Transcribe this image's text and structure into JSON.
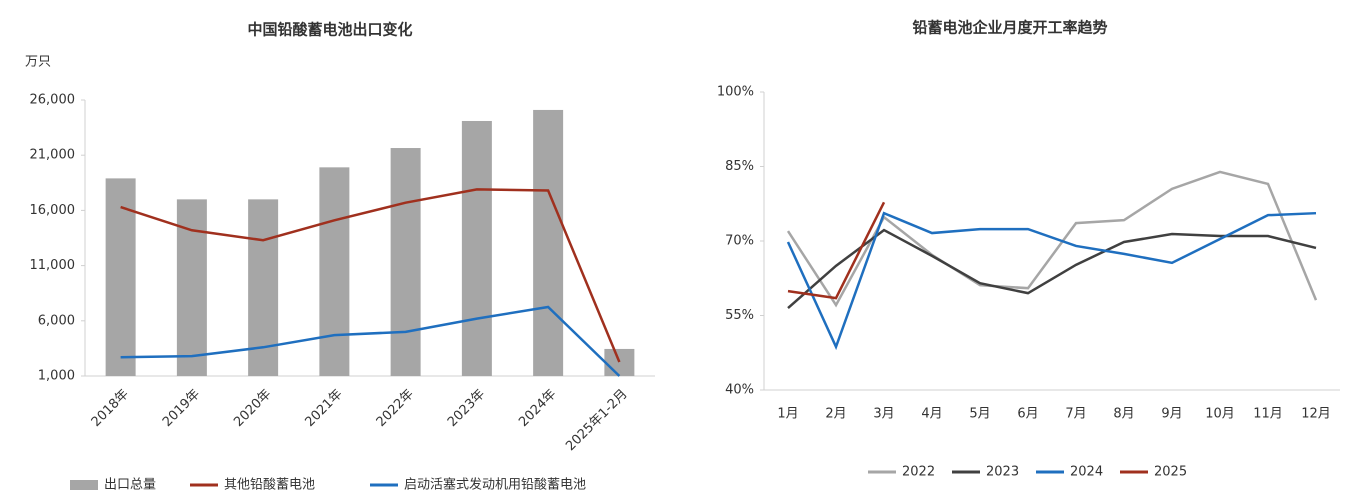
{
  "chart_data": [
    {
      "type": "bar",
      "title": "中国铅酸蓄电池出口变化",
      "y_label": "万只",
      "categories": [
        "2018年",
        "2019年",
        "2020年",
        "2021年",
        "2022年",
        "2023年",
        "2024年",
        "2025年1-2月"
      ],
      "series": [
        {
          "name": "出口总量",
          "type": "bar",
          "color": "#a6a6a6",
          "values": [
            18900,
            17000,
            17000,
            19900,
            21650,
            24100,
            25100,
            3450
          ]
        },
        {
          "name": "其他铅酸蓄电池",
          "type": "line",
          "color": "#a0301e",
          "values": [
            16300,
            14200,
            13300,
            15100,
            16700,
            17900,
            17800,
            2270
          ]
        },
        {
          "name": "启动活塞式发动机用铅酸蓄电池",
          "type": "line",
          "color": "#1f6fbf",
          "values": [
            2700,
            2800,
            3600,
            4700,
            5000,
            6200,
            7250,
            1000
          ]
        }
      ],
      "ylim": [
        1000,
        26000
      ],
      "yticks": [
        {
          "value": 1000,
          "label": "1,000"
        },
        {
          "value": 6000,
          "label": "6,000"
        },
        {
          "value": 11000,
          "label": "11,000"
        },
        {
          "value": 16000,
          "label": "16,000"
        },
        {
          "value": 21000,
          "label": "21,000"
        },
        {
          "value": 26000,
          "label": "26,000"
        }
      ],
      "legend": "bottom"
    },
    {
      "type": "line",
      "title": "铅蓄电池企业月度开工率趋势",
      "categories": [
        "1月",
        "2月",
        "3月",
        "4月",
        "5月",
        "6月",
        "7月",
        "8月",
        "9月",
        "10月",
        "11月",
        "12月"
      ],
      "series": [
        {
          "name": "2022",
          "color": "#a6a6a6",
          "values": [
            72.0,
            57.1,
            74.8,
            67.2,
            61.1,
            60.5,
            73.6,
            74.2,
            80.5,
            83.9,
            81.5,
            58.1
          ]
        },
        {
          "name": "2023",
          "color": "#404040",
          "values": [
            56.5,
            65.0,
            72.2,
            67.0,
            61.5,
            59.5,
            65.2,
            69.8,
            71.4,
            71.0,
            71.0,
            68.6
          ]
        },
        {
          "name": "2024",
          "color": "#1f6fbf",
          "values": [
            69.8,
            48.7,
            75.6,
            71.6,
            72.4,
            72.4,
            69.0,
            67.4,
            65.6,
            70.4,
            75.2,
            75.6
          ]
        },
        {
          "name": "2025",
          "color": "#a0301e",
          "values": [
            59.9,
            58.5,
            77.8,
            null,
            null,
            null,
            null,
            null,
            null,
            null,
            null,
            null
          ]
        }
      ],
      "ylim": [
        40,
        100
      ],
      "yticks": [
        {
          "value": 40,
          "label": "40%"
        },
        {
          "value": 55,
          "label": "55%"
        },
        {
          "value": 70,
          "label": "70%"
        },
        {
          "value": 85,
          "label": "85%"
        },
        {
          "value": 100,
          "label": "100%"
        }
      ],
      "legend": "bottom"
    }
  ]
}
